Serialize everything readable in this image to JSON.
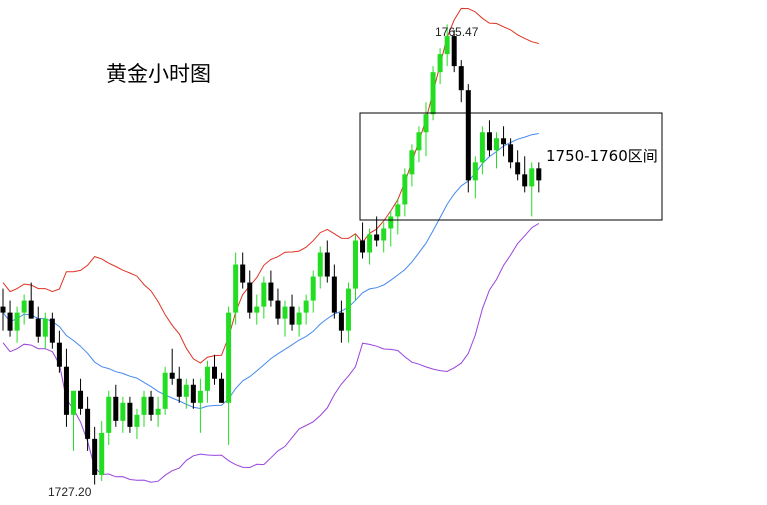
{
  "title": "黄金小时图",
  "annotations": {
    "high_label": "1765.47",
    "low_label": "1727.20",
    "range_label": "1750-1760区间"
  },
  "colors": {
    "bull": "#22dd22",
    "bear": "#000000",
    "middle_band": "#4488ee",
    "upper_band": "#dd3322",
    "lower_band": "#9944dd",
    "range_box": "#000000"
  },
  "chart_data": {
    "type": "candlestick",
    "instrument": "黄金",
    "title": "黄金小时图",
    "high": 1765.47,
    "low": 1727.2,
    "y_range": [
      1725.5,
      1767.5
    ],
    "highlight_range": [
      1750,
      1760
    ],
    "indicators": [
      "upper-band",
      "middle-band",
      "lower-band"
    ],
    "candles": [
      [
        1742.0,
        1743.5,
        1740.0,
        1741.5
      ],
      [
        1741.5,
        1742.5,
        1739.5,
        1740.0
      ],
      [
        1740.0,
        1742.0,
        1739.0,
        1741.5
      ],
      [
        1741.5,
        1743.0,
        1740.5,
        1742.5
      ],
      [
        1742.5,
        1744.0,
        1741.0,
        1741.0
      ],
      [
        1741.0,
        1742.0,
        1739.0,
        1739.5
      ],
      [
        1739.5,
        1741.5,
        1738.5,
        1741.0
      ],
      [
        1741.0,
        1741.5,
        1738.5,
        1739.0
      ],
      [
        1739.0,
        1740.0,
        1736.5,
        1737.0
      ],
      [
        1737.0,
        1738.5,
        1732.0,
        1733.0
      ],
      [
        1733.0,
        1735.0,
        1730.0,
        1735.0
      ],
      [
        1735.0,
        1736.0,
        1733.0,
        1733.5
      ],
      [
        1733.5,
        1734.5,
        1730.0,
        1731.0
      ],
      [
        1731.0,
        1732.0,
        1727.2,
        1728.0
      ],
      [
        1728.0,
        1732.5,
        1727.5,
        1731.5
      ],
      [
        1731.5,
        1735.0,
        1730.5,
        1734.5
      ],
      [
        1734.5,
        1735.5,
        1732.0,
        1732.5
      ],
      [
        1732.5,
        1734.5,
        1731.5,
        1734.0
      ],
      [
        1734.0,
        1734.5,
        1731.5,
        1732.0
      ],
      [
        1732.0,
        1733.5,
        1731.0,
        1733.0
      ],
      [
        1733.0,
        1735.0,
        1732.0,
        1734.5
      ],
      [
        1734.5,
        1735.0,
        1732.5,
        1733.0
      ],
      [
        1733.0,
        1734.5,
        1732.0,
        1733.5
      ],
      [
        1733.5,
        1737.0,
        1733.0,
        1736.5
      ],
      [
        1736.5,
        1738.5,
        1735.5,
        1736.0
      ],
      [
        1736.0,
        1737.0,
        1734.0,
        1734.5
      ],
      [
        1734.5,
        1736.0,
        1733.5,
        1735.5
      ],
      [
        1735.5,
        1736.0,
        1733.5,
        1734.0
      ],
      [
        1734.0,
        1736.0,
        1731.5,
        1735.0
      ],
      [
        1735.0,
        1737.5,
        1734.0,
        1737.0
      ],
      [
        1737.0,
        1738.0,
        1735.5,
        1736.0
      ],
      [
        1736.0,
        1736.5,
        1734.0,
        1734.0
      ],
      [
        1734.0,
        1742.0,
        1730.5,
        1741.5
      ],
      [
        1741.5,
        1746.5,
        1740.5,
        1745.5
      ],
      [
        1745.5,
        1746.5,
        1743.5,
        1744.0
      ],
      [
        1744.0,
        1745.0,
        1741.0,
        1741.5
      ],
      [
        1741.5,
        1743.0,
        1740.5,
        1742.0
      ],
      [
        1742.0,
        1744.5,
        1741.0,
        1744.0
      ],
      [
        1744.0,
        1745.0,
        1742.0,
        1742.5
      ],
      [
        1742.5,
        1743.5,
        1740.5,
        1741.0
      ],
      [
        1741.0,
        1742.5,
        1739.5,
        1742.0
      ],
      [
        1742.0,
        1743.0,
        1740.0,
        1740.5
      ],
      [
        1740.5,
        1742.0,
        1739.5,
        1741.5
      ],
      [
        1741.5,
        1743.0,
        1740.5,
        1742.5
      ],
      [
        1742.5,
        1745.0,
        1741.5,
        1744.5
      ],
      [
        1744.5,
        1747.0,
        1743.5,
        1746.5
      ],
      [
        1746.5,
        1747.5,
        1744.0,
        1744.5
      ],
      [
        1744.5,
        1745.5,
        1741.0,
        1741.5
      ],
      [
        1741.5,
        1742.5,
        1739.0,
        1740.0
      ],
      [
        1740.0,
        1744.0,
        1739.0,
        1743.5
      ],
      [
        1743.5,
        1748.0,
        1742.5,
        1747.5
      ],
      [
        1747.5,
        1749.0,
        1746.0,
        1746.5
      ],
      [
        1746.5,
        1748.5,
        1745.5,
        1748.0
      ],
      [
        1748.0,
        1749.5,
        1747.0,
        1747.5
      ],
      [
        1747.5,
        1749.0,
        1746.5,
        1748.5
      ],
      [
        1748.5,
        1750.0,
        1747.0,
        1749.5
      ],
      [
        1749.5,
        1751.0,
        1748.0,
        1750.5
      ],
      [
        1750.5,
        1753.5,
        1749.5,
        1753.0
      ],
      [
        1753.0,
        1755.5,
        1752.0,
        1755.0
      ],
      [
        1755.0,
        1757.0,
        1754.0,
        1756.5
      ],
      [
        1756.5,
        1759.0,
        1754.5,
        1758.0
      ],
      [
        1758.0,
        1762.0,
        1757.5,
        1761.5
      ],
      [
        1761.5,
        1763.5,
        1760.5,
        1763.0
      ],
      [
        1763.0,
        1765.47,
        1762.0,
        1764.5
      ],
      [
        1764.5,
        1765.0,
        1761.5,
        1762.0
      ],
      [
        1762.0,
        1762.5,
        1759.0,
        1760.0
      ],
      [
        1760.0,
        1760.5,
        1751.5,
        1752.5
      ],
      [
        1752.5,
        1754.5,
        1751.0,
        1754.0
      ],
      [
        1754.0,
        1757.0,
        1753.0,
        1756.5
      ],
      [
        1756.5,
        1757.5,
        1754.5,
        1755.0
      ],
      [
        1755.0,
        1756.5,
        1753.5,
        1756.0
      ],
      [
        1756.0,
        1757.0,
        1754.5,
        1755.5
      ],
      [
        1755.5,
        1756.0,
        1753.5,
        1754.0
      ],
      [
        1754.0,
        1755.0,
        1752.5,
        1753.0
      ],
      [
        1753.0,
        1754.5,
        1751.5,
        1752.0
      ],
      [
        1752.0,
        1754.0,
        1749.5,
        1753.5
      ],
      [
        1753.5,
        1754.0,
        1751.5,
        1752.5
      ]
    ]
  }
}
